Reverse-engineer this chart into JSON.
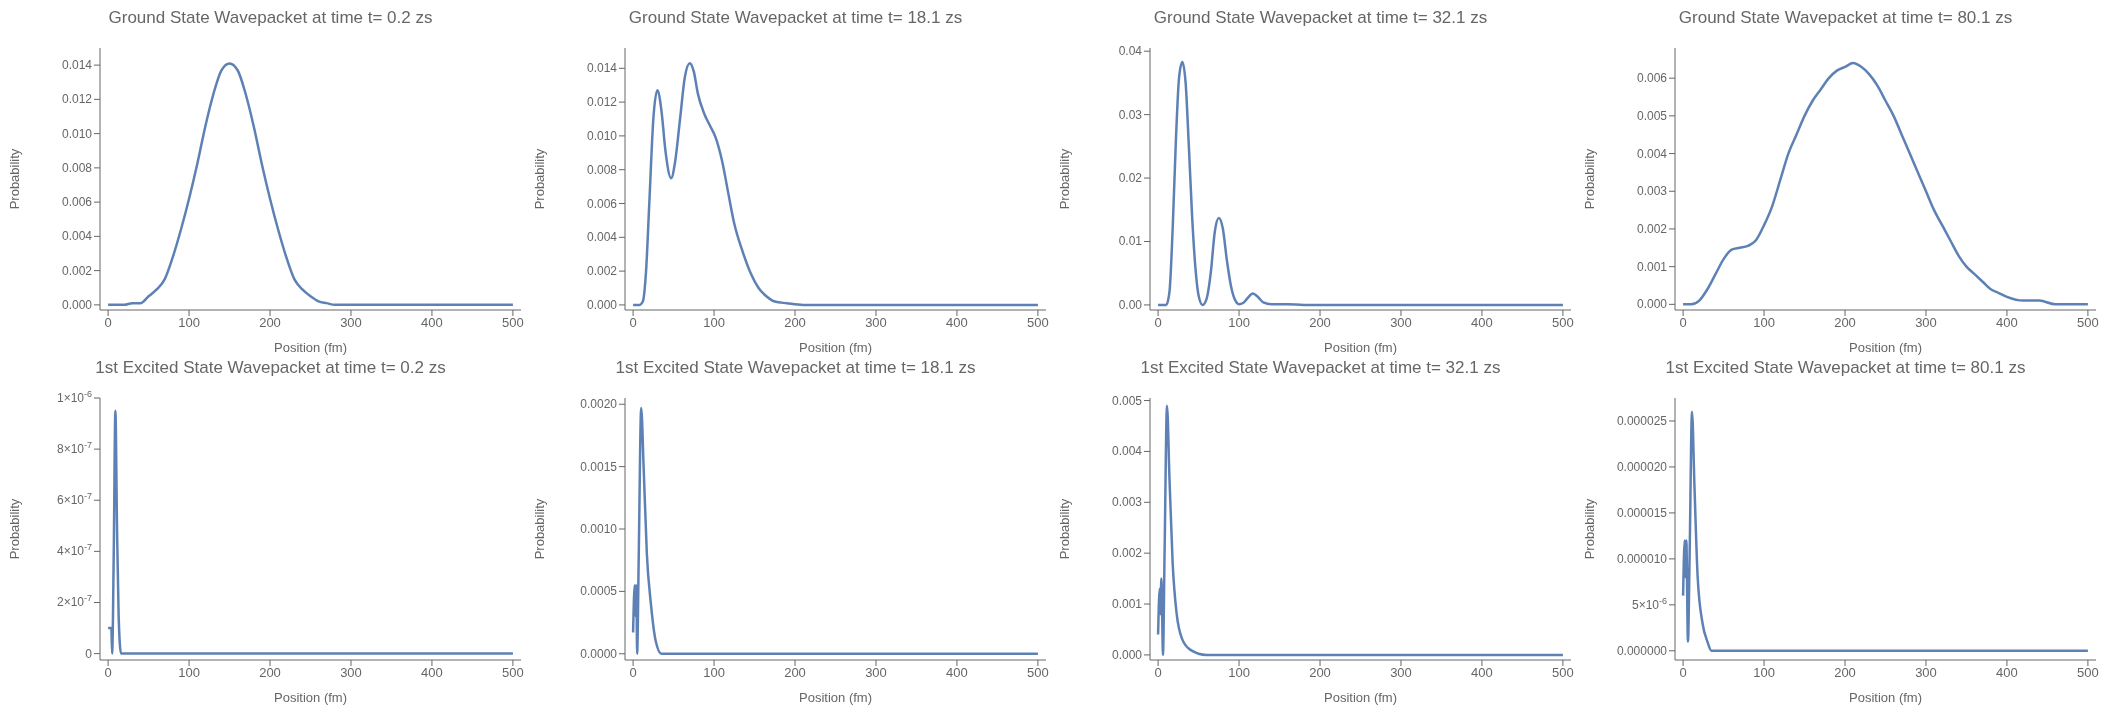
{
  "chart_data": [
    {
      "type": "line",
      "title": "Ground State Wavepacket at time t= 0.2 zs",
      "xlabel": "Position (fm)",
      "ylabel": "Probability",
      "color": "#5e81b5",
      "xlim": [
        -10,
        510
      ],
      "xticks": [
        0,
        100,
        200,
        300,
        400,
        500
      ],
      "ylim": [
        -0.0003,
        0.015
      ],
      "yticks": [
        {
          "value": 0,
          "label": "0.000"
        },
        0.002,
        0.004,
        0.006,
        0.008,
        {
          "value": 0.01,
          "label": "0.010"
        },
        0.012,
        0.014
      ],
      "x": [
        0,
        20,
        30,
        40,
        50,
        60,
        70,
        80,
        90,
        100,
        110,
        120,
        130,
        140,
        150,
        160,
        170,
        180,
        190,
        200,
        210,
        220,
        230,
        240,
        250,
        260,
        270,
        280,
        300,
        400,
        500
      ],
      "values": [
        0,
        0,
        0.0001,
        0.0001,
        0.0005,
        0.0009,
        0.0015,
        0.0028,
        0.0044,
        0.0062,
        0.0082,
        0.0104,
        0.0123,
        0.0137,
        0.0141,
        0.0137,
        0.0123,
        0.0104,
        0.0082,
        0.0062,
        0.0044,
        0.0028,
        0.0015,
        0.0009,
        0.0005,
        0.0002,
        0.0001,
        0,
        0,
        0,
        0
      ]
    },
    {
      "type": "line",
      "title": "Ground State Wavepacket at time t= 18.1 zs",
      "xlabel": "Position (fm)",
      "ylabel": "Probability",
      "color": "#5e81b5",
      "xlim": [
        -10,
        510
      ],
      "xticks": [
        0,
        100,
        200,
        300,
        400,
        500
      ],
      "ylim": [
        -0.0003,
        0.0152
      ],
      "yticks": [
        {
          "value": 0,
          "label": "0.000"
        },
        0.002,
        0.004,
        0.006,
        0.008,
        {
          "value": 0.01,
          "label": "0.010"
        },
        0.012,
        0.014
      ],
      "x": [
        0,
        8,
        12,
        16,
        20,
        25,
        30,
        35,
        40,
        47,
        52,
        58,
        64,
        70,
        75,
        80,
        88,
        95,
        102,
        110,
        118,
        125,
        135,
        145,
        155,
        165,
        175,
        190,
        210,
        300,
        500
      ],
      "values": [
        0,
        0,
        0.0002,
        0.002,
        0.006,
        0.011,
        0.0127,
        0.0115,
        0.0091,
        0.0075,
        0.0085,
        0.011,
        0.0135,
        0.0143,
        0.0138,
        0.0125,
        0.0113,
        0.0106,
        0.0099,
        0.0085,
        0.0065,
        0.0048,
        0.0032,
        0.0019,
        0.001,
        0.0005,
        0.0002,
        0.0001,
        0,
        0,
        0
      ]
    },
    {
      "type": "line",
      "title": "Ground State Wavepacket at time t= 32.1 zs",
      "xlabel": "Position (fm)",
      "ylabel": "Probability",
      "color": "#5e81b5",
      "xlim": [
        -10,
        510
      ],
      "xticks": [
        0,
        100,
        200,
        300,
        400,
        500
      ],
      "ylim": [
        -0.0008,
        0.0405
      ],
      "yticks": [
        {
          "value": 0,
          "label": "0.00"
        },
        0.01,
        0.02,
        0.03,
        0.04
      ],
      "x": [
        0,
        10,
        14,
        18,
        22,
        26,
        30,
        34,
        38,
        42,
        46,
        50,
        55,
        60,
        65,
        70,
        75,
        80,
        85,
        90,
        95,
        100,
        105,
        110,
        117,
        123,
        130,
        140,
        160,
        180,
        500
      ],
      "values": [
        0,
        0,
        0.002,
        0.012,
        0.026,
        0.036,
        0.0383,
        0.035,
        0.025,
        0.014,
        0.006,
        0.0015,
        0,
        0.001,
        0.005,
        0.0115,
        0.0137,
        0.012,
        0.007,
        0.003,
        0.0008,
        0.0001,
        0.0003,
        0.001,
        0.0018,
        0.0013,
        0.0004,
        0.0001,
        0.0001,
        0,
        0
      ]
    },
    {
      "type": "line",
      "title": "Ground State Wavepacket at time t= 80.1 zs",
      "xlabel": "Position (fm)",
      "ylabel": "Probability",
      "color": "#5e81b5",
      "xlim": [
        -10,
        510
      ],
      "xticks": [
        0,
        100,
        200,
        300,
        400,
        500
      ],
      "ylim": [
        -0.00015,
        0.0068
      ],
      "yticks": [
        {
          "value": 0,
          "label": "0.000"
        },
        0.001,
        0.002,
        0.003,
        0.004,
        0.005,
        0.006
      ],
      "x": [
        0,
        10,
        20,
        30,
        40,
        50,
        60,
        70,
        80,
        90,
        100,
        110,
        120,
        130,
        140,
        150,
        160,
        170,
        180,
        190,
        200,
        210,
        220,
        230,
        240,
        250,
        260,
        270,
        280,
        290,
        300,
        310,
        320,
        330,
        340,
        350,
        360,
        370,
        380,
        390,
        400,
        420,
        440,
        460,
        480,
        500
      ],
      "values": [
        0,
        0,
        0.0001,
        0.0004,
        0.0008,
        0.0012,
        0.00145,
        0.0015,
        0.00155,
        0.0017,
        0.0021,
        0.0026,
        0.0033,
        0.004,
        0.0045,
        0.005,
        0.0054,
        0.0057,
        0.006,
        0.0062,
        0.0063,
        0.0064,
        0.0063,
        0.0061,
        0.0058,
        0.0054,
        0.005,
        0.0045,
        0.004,
        0.0035,
        0.003,
        0.0025,
        0.0021,
        0.0017,
        0.0013,
        0.001,
        0.0008,
        0.0006,
        0.0004,
        0.0003,
        0.0002,
        0.0001,
        0.0001,
        0,
        0,
        0
      ]
    },
    {
      "type": "line",
      "title": "1st Excited State Wavepacket at time t= 0.2 zs",
      "xlabel": "Position (fm)",
      "ylabel": "Probability",
      "color": "#5e81b5",
      "xlim": [
        -10,
        510
      ],
      "xticks": [
        0,
        100,
        200,
        300,
        400,
        500
      ],
      "ylim": [
        -2.5e-08,
        1e-06
      ],
      "yticks": [
        0,
        {
          "value": 2e-07,
          "label": "2×10$^{-7}$"
        },
        {
          "value": 4e-07,
          "label": "4×10$^{-7}$"
        },
        {
          "value": 6e-07,
          "label": "6×10$^{-7}$"
        },
        {
          "value": 8e-07,
          "label": "8×10$^{-7}$"
        },
        {
          "value": 1e-06,
          "label": "1×10$^{-6}$"
        }
      ],
      "x": [
        0,
        2,
        3,
        4,
        5,
        7,
        9,
        11,
        13,
        16,
        20,
        500
      ],
      "values": [
        1e-07,
        1e-07,
        1e-07,
        1e-07,
        0,
        4e-07,
        9.5e-07,
        5e-07,
        1.5e-07,
        0,
        0,
        0
      ]
    },
    {
      "type": "line",
      "title": "1st Excited State Wavepacket at time t= 18.1 zs",
      "xlabel": "Position (fm)",
      "ylabel": "Probability",
      "color": "#5e81b5",
      "xlim": [
        -10,
        510
      ],
      "xticks": [
        0,
        100,
        200,
        300,
        400,
        500
      ],
      "ylim": [
        -5e-05,
        0.00205
      ],
      "yticks": [
        {
          "value": 0,
          "label": "0.0000"
        },
        0.0005,
        {
          "value": 0.001,
          "label": "0.0010"
        },
        0.0015,
        {
          "value": 0.002,
          "label": "0.0020"
        }
      ],
      "x": [
        0,
        2,
        3,
        4,
        5,
        7,
        10,
        13,
        17,
        22,
        28,
        35,
        50,
        500
      ],
      "values": [
        0.00017,
        0.00055,
        0.0003,
        0.00055,
        0,
        0.0008,
        0.00197,
        0.0015,
        0.0008,
        0.0004,
        0.0001,
        0,
        0,
        0
      ]
    },
    {
      "type": "line",
      "title": "1st Excited State Wavepacket at time t= 32.1 zs",
      "xlabel": "Position (fm)",
      "ylabel": "Probability",
      "color": "#5e81b5",
      "xlim": [
        -10,
        510
      ],
      "xticks": [
        0,
        100,
        200,
        300,
        400,
        500
      ],
      "ylim": [
        -0.0001,
        0.00505
      ],
      "yticks": [
        {
          "value": 0,
          "label": "0.000"
        },
        0.001,
        0.002,
        0.003,
        0.004,
        0.005
      ],
      "x": [
        0,
        2,
        3,
        4,
        5,
        6,
        8,
        11,
        14,
        18,
        23,
        30,
        40,
        60,
        500
      ],
      "values": [
        0.0004,
        0.0013,
        0.0008,
        0.0015,
        0.0008,
        0,
        0.002,
        0.0049,
        0.0035,
        0.0018,
        0.0008,
        0.0003,
        0.0001,
        0,
        0
      ]
    },
    {
      "type": "line",
      "title": "1st Excited State Wavepacket at time t= 80.1 zs",
      "xlabel": "Position (fm)",
      "ylabel": "Probability",
      "color": "#5e81b5",
      "xlim": [
        -10,
        510
      ],
      "xticks": [
        0,
        100,
        200,
        300,
        400,
        500
      ],
      "ylim": [
        -1e-06,
        2.75e-05
      ],
      "yticks": [
        {
          "value": 0,
          "label": "0.000000"
        },
        {
          "value": 5e-06,
          "label": "5×10$^{-6}$"
        },
        {
          "value": 1e-05,
          "label": "0.000010"
        },
        {
          "value": 1.5e-05,
          "label": "0.000015"
        },
        {
          "value": 2e-05,
          "label": "0.000020"
        },
        {
          "value": 2.5e-05,
          "label": "0.000025"
        }
      ],
      "x": [
        0,
        2,
        3,
        4,
        6,
        8,
        11,
        14,
        18,
        24,
        30,
        35,
        60,
        100,
        150,
        200,
        300,
        400,
        500
      ],
      "values": [
        6e-06,
        1.2e-05,
        8e-06,
        1.2e-05,
        1e-06,
        1e-05,
        2.6e-05,
        1.8e-05,
        8e-06,
        3e-06,
        1e-06,
        0,
        0,
        0,
        0,
        0,
        0,
        0,
        0
      ]
    }
  ]
}
